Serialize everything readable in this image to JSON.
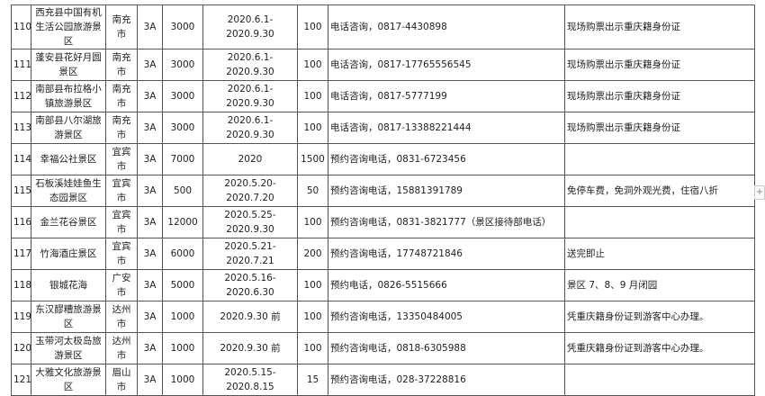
{
  "rows": [
    {
      "no": "110",
      "name": "西充县中国有机生活公园旅游景区",
      "city": "南充市",
      "level": "3A",
      "count": "3000",
      "period": "2020.6.1-2020.9.30",
      "limit": "100",
      "contact": "电话咨询，0817-4430898",
      "note": "现场购票出示重庆籍身份证"
    },
    {
      "no": "111",
      "name": "蓬安县花好月圆景区",
      "city": "南充市",
      "level": "3A",
      "count": "3000",
      "period": "2020.6.1-2020.9.30",
      "limit": "100",
      "contact": "电话咨询，0817-17765556545",
      "note": "现场购票出示重庆籍身份证"
    },
    {
      "no": "112",
      "name": "南部县布拉格小镇旅游景区",
      "city": "南充市",
      "level": "3A",
      "count": "3000",
      "period": "2020.6.1-2020.9.30",
      "limit": "100",
      "contact": "电话咨询，0817-5777199",
      "note": "现场购票出示重庆籍身份证"
    },
    {
      "no": "113",
      "name": "南部县八尔湖旅游景区",
      "city": "南充市",
      "level": "3A",
      "count": "3000",
      "period": "2020.6.1-2020.9.30",
      "limit": "100",
      "contact": "电话咨询，0817-13388221444",
      "note": "现场购票出示重庆籍身份证"
    },
    {
      "no": "114",
      "name": "幸福公社景区",
      "city": "宜宾市",
      "level": "3A",
      "count": "7000",
      "period": "2020",
      "limit": "1500",
      "contact": "预约咨询电话，0831-6723456",
      "note": ""
    },
    {
      "no": "115",
      "name": "石板溪娃娃鱼生态园景区",
      "city": "宜宾市",
      "level": "3A",
      "count": "500",
      "period": "2020.5.20-2020.7.20",
      "limit": "50",
      "contact": "预约咨询电话，15881391789",
      "note": "免停车费，免洞外观光费，住宿八折"
    },
    {
      "no": "116",
      "name": "金兰花谷景区",
      "city": "宜宾市",
      "level": "3A",
      "count": "12000",
      "period": "2020.5.25-2020.9.30",
      "limit": "100",
      "contact": "预约咨询电话，0831-3821777（景区接待部电话）",
      "note": ""
    },
    {
      "no": "117",
      "name": "竹海酒庄景区",
      "city": "宜宾市",
      "level": "3A",
      "count": "6000",
      "period": "2020.5.21-2020.7.21",
      "limit": "200",
      "contact": "预约咨询电话，17748721846",
      "note": "送完即止"
    },
    {
      "no": "118",
      "name": "银城花海",
      "city": "广安市",
      "level": "3A",
      "count": "5000",
      "period": "2020.5.16-2020.6.30",
      "limit": "100",
      "contact": "预约电话，0826-5515666",
      "note": "景区 7、8、9 月闭园"
    },
    {
      "no": "119",
      "name": "东汉醪糟旅游景区",
      "city": "达州市",
      "level": "3A",
      "count": "1000",
      "period": "2020.9.30 前",
      "limit": "100",
      "contact": "预约咨询电话，13350484005",
      "note": "凭重庆籍身份证到游客中心办理。"
    },
    {
      "no": "120",
      "name": "玉带河太极岛旅游景区",
      "city": "达州市",
      "level": "3A",
      "count": "1000",
      "period": "2020.9.30 前",
      "limit": "100",
      "contact": "预约咨询电话，0818-6305988",
      "note": "凭重庆籍身份证到游客中心办理。"
    },
    {
      "no": "121",
      "name": "大雅文化旅游景区",
      "city": "眉山市",
      "level": "3A",
      "count": "1000",
      "period": "2020.5.15-2020.8.15",
      "limit": "15",
      "contact": "预约咨询电话，028-37228816",
      "note": ""
    }
  ],
  "expand_button": "+"
}
